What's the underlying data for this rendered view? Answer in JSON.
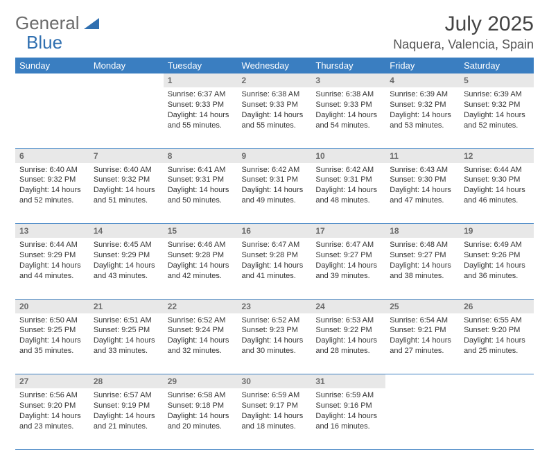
{
  "brand": {
    "part1": "General",
    "part2": "Blue"
  },
  "title": "July 2025",
  "location": "Naquera, Valencia, Spain",
  "colors": {
    "header_bg": "#3a7ec1",
    "header_text": "#ffffff",
    "daynum_bg": "#e8e8e8",
    "daynum_text": "#6a6a6a",
    "border": "#3a7ec1",
    "logo_gray": "#6b6b6b",
    "logo_blue": "#2f6fb0"
  },
  "weekdays": [
    "Sunday",
    "Monday",
    "Tuesday",
    "Wednesday",
    "Thursday",
    "Friday",
    "Saturday"
  ],
  "weeks": [
    [
      null,
      null,
      {
        "n": "1",
        "sunrise": "6:37 AM",
        "sunset": "9:33 PM",
        "daylight": "14 hours and 55 minutes."
      },
      {
        "n": "2",
        "sunrise": "6:38 AM",
        "sunset": "9:33 PM",
        "daylight": "14 hours and 55 minutes."
      },
      {
        "n": "3",
        "sunrise": "6:38 AM",
        "sunset": "9:33 PM",
        "daylight": "14 hours and 54 minutes."
      },
      {
        "n": "4",
        "sunrise": "6:39 AM",
        "sunset": "9:32 PM",
        "daylight": "14 hours and 53 minutes."
      },
      {
        "n": "5",
        "sunrise": "6:39 AM",
        "sunset": "9:32 PM",
        "daylight": "14 hours and 52 minutes."
      }
    ],
    [
      {
        "n": "6",
        "sunrise": "6:40 AM",
        "sunset": "9:32 PM",
        "daylight": "14 hours and 52 minutes."
      },
      {
        "n": "7",
        "sunrise": "6:40 AM",
        "sunset": "9:32 PM",
        "daylight": "14 hours and 51 minutes."
      },
      {
        "n": "8",
        "sunrise": "6:41 AM",
        "sunset": "9:31 PM",
        "daylight": "14 hours and 50 minutes."
      },
      {
        "n": "9",
        "sunrise": "6:42 AM",
        "sunset": "9:31 PM",
        "daylight": "14 hours and 49 minutes."
      },
      {
        "n": "10",
        "sunrise": "6:42 AM",
        "sunset": "9:31 PM",
        "daylight": "14 hours and 48 minutes."
      },
      {
        "n": "11",
        "sunrise": "6:43 AM",
        "sunset": "9:30 PM",
        "daylight": "14 hours and 47 minutes."
      },
      {
        "n": "12",
        "sunrise": "6:44 AM",
        "sunset": "9:30 PM",
        "daylight": "14 hours and 46 minutes."
      }
    ],
    [
      {
        "n": "13",
        "sunrise": "6:44 AM",
        "sunset": "9:29 PM",
        "daylight": "14 hours and 44 minutes."
      },
      {
        "n": "14",
        "sunrise": "6:45 AM",
        "sunset": "9:29 PM",
        "daylight": "14 hours and 43 minutes."
      },
      {
        "n": "15",
        "sunrise": "6:46 AM",
        "sunset": "9:28 PM",
        "daylight": "14 hours and 42 minutes."
      },
      {
        "n": "16",
        "sunrise": "6:47 AM",
        "sunset": "9:28 PM",
        "daylight": "14 hours and 41 minutes."
      },
      {
        "n": "17",
        "sunrise": "6:47 AM",
        "sunset": "9:27 PM",
        "daylight": "14 hours and 39 minutes."
      },
      {
        "n": "18",
        "sunrise": "6:48 AM",
        "sunset": "9:27 PM",
        "daylight": "14 hours and 38 minutes."
      },
      {
        "n": "19",
        "sunrise": "6:49 AM",
        "sunset": "9:26 PM",
        "daylight": "14 hours and 36 minutes."
      }
    ],
    [
      {
        "n": "20",
        "sunrise": "6:50 AM",
        "sunset": "9:25 PM",
        "daylight": "14 hours and 35 minutes."
      },
      {
        "n": "21",
        "sunrise": "6:51 AM",
        "sunset": "9:25 PM",
        "daylight": "14 hours and 33 minutes."
      },
      {
        "n": "22",
        "sunrise": "6:52 AM",
        "sunset": "9:24 PM",
        "daylight": "14 hours and 32 minutes."
      },
      {
        "n": "23",
        "sunrise": "6:52 AM",
        "sunset": "9:23 PM",
        "daylight": "14 hours and 30 minutes."
      },
      {
        "n": "24",
        "sunrise": "6:53 AM",
        "sunset": "9:22 PM",
        "daylight": "14 hours and 28 minutes."
      },
      {
        "n": "25",
        "sunrise": "6:54 AM",
        "sunset": "9:21 PM",
        "daylight": "14 hours and 27 minutes."
      },
      {
        "n": "26",
        "sunrise": "6:55 AM",
        "sunset": "9:20 PM",
        "daylight": "14 hours and 25 minutes."
      }
    ],
    [
      {
        "n": "27",
        "sunrise": "6:56 AM",
        "sunset": "9:20 PM",
        "daylight": "14 hours and 23 minutes."
      },
      {
        "n": "28",
        "sunrise": "6:57 AM",
        "sunset": "9:19 PM",
        "daylight": "14 hours and 21 minutes."
      },
      {
        "n": "29",
        "sunrise": "6:58 AM",
        "sunset": "9:18 PM",
        "daylight": "14 hours and 20 minutes."
      },
      {
        "n": "30",
        "sunrise": "6:59 AM",
        "sunset": "9:17 PM",
        "daylight": "14 hours and 18 minutes."
      },
      {
        "n": "31",
        "sunrise": "6:59 AM",
        "sunset": "9:16 PM",
        "daylight": "14 hours and 16 minutes."
      },
      null,
      null
    ]
  ],
  "labels": {
    "sunrise": "Sunrise:",
    "sunset": "Sunset:",
    "daylight": "Daylight:"
  }
}
